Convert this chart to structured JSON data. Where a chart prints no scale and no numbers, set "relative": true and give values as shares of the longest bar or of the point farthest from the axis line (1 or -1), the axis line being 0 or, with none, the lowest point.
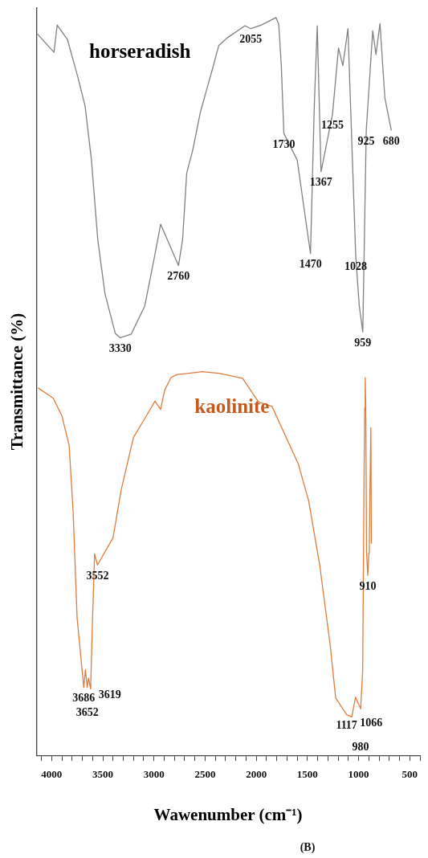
{
  "chart_data": {
    "type": "line",
    "relative": true,
    "xlabel": "Wawenumber (cm⁻¹)",
    "ylabel": "Transmittance (%)",
    "xlim": [
      4150,
      400
    ],
    "xticks": [
      {
        "value": 4100,
        "label": null
      },
      4000,
      {
        "value": 3900,
        "label": null
      },
      {
        "value": 3800,
        "label": null
      },
      {
        "value": 3700,
        "label": null
      },
      {
        "value": 3600,
        "label": null
      },
      3500,
      {
        "value": 3400,
        "label": null
      },
      {
        "value": 3300,
        "label": null
      },
      {
        "value": 3200,
        "label": null
      },
      {
        "value": 3100,
        "label": null
      },
      3000,
      {
        "value": 2900,
        "label": null
      },
      {
        "value": 2800,
        "label": null
      },
      {
        "value": 2700,
        "label": null
      },
      {
        "value": 2600,
        "label": null
      },
      2500,
      {
        "value": 2400,
        "label": null
      },
      {
        "value": 2300,
        "label": null
      },
      {
        "value": 2200,
        "label": null
      },
      {
        "value": 2100,
        "label": null
      },
      2000,
      {
        "value": 1900,
        "label": null
      },
      {
        "value": 1800,
        "label": null
      },
      {
        "value": 1700,
        "label": null
      },
      {
        "value": 1600,
        "label": null
      },
      1500,
      {
        "value": 1400,
        "label": null
      },
      {
        "value": 1300,
        "label": null
      },
      {
        "value": 1200,
        "label": null
      },
      {
        "value": 1100,
        "label": null
      },
      1000,
      {
        "value": 900,
        "label": null
      },
      {
        "value": 800,
        "label": null
      },
      {
        "value": 700,
        "label": null
      },
      {
        "value": 600,
        "label": null
      },
      500,
      {
        "value": 400,
        "label": null
      }
    ],
    "tick_labels": "x",
    "grid": false,
    "legend": false,
    "marker": "none",
    "line_style": "solid",
    "series": [
      {
        "name": "horseradish",
        "color": "#808080",
        "x": [
          4140,
          3977,
          3946,
          3845,
          3743,
          3673,
          3611,
          3549,
          3479,
          3378,
          3330,
          3222,
          3090,
          2989,
          2935,
          2760,
          2720,
          2680,
          2620,
          2546,
          2421,
          2367,
          2289,
          2110,
          2055,
          1950,
          1807,
          1780,
          1755,
          1730,
          1600,
          1470,
          1433,
          1404,
          1367,
          1255,
          1196,
          1154,
          1104,
          1028,
          993,
          959,
          925,
          862,
          830,
          791,
          743,
          680
        ],
        "values": [
          0.978,
          0.953,
          0.99,
          0.97,
          0.919,
          0.88,
          0.807,
          0.699,
          0.626,
          0.572,
          0.566,
          0.571,
          0.609,
          0.68,
          0.72,
          0.664,
          0.699,
          0.789,
          0.821,
          0.872,
          0.934,
          0.962,
          0.972,
          0.989,
          0.985,
          0.99,
          1,
          0.991,
          0.934,
          0.843,
          0.807,
          0.68,
          0.88,
          0.989,
          0.791,
          0.869,
          0.959,
          0.935,
          0.985,
          0.677,
          0.609,
          0.574,
          0.847,
          0.982,
          0.95,
          0.992,
          0.891,
          0.847
        ]
      },
      {
        "name": "kaolinite",
        "color": "#e07b39",
        "x": [
          4132,
          3984,
          3899,
          3829,
          3790,
          3751,
          3686,
          3670,
          3652,
          3640,
          3619,
          3600,
          3580,
          3552,
          3400,
          3320,
          3200,
          3105,
          2990,
          2935,
          2895,
          2834,
          2780,
          2523,
          2367,
          2134,
          1978,
          1846,
          1745,
          1589,
          1488,
          1380,
          1278,
          1224,
          1117,
          1066,
          1030,
          980,
          960,
          950,
          945,
          940,
          935,
          930,
          922,
          910,
          900,
          895,
          890,
          880,
          875
        ],
        "values": [
          0.498,
          0.484,
          0.46,
          0.42,
          0.33,
          0.186,
          0.092,
          0.116,
          0.092,
          0.105,
          0.09,
          0.186,
          0.273,
          0.258,
          0.295,
          0.36,
          0.431,
          0.453,
          0.48,
          0.469,
          0.495,
          0.512,
          0.516,
          0.52,
          0.518,
          0.511,
          0.479,
          0.473,
          0.442,
          0.395,
          0.345,
          0.258,
          0.15,
          0.078,
          0.055,
          0.052,
          0.079,
          0.063,
          0.114,
          0.312,
          0.399,
          0.471,
          0.512,
          0.475,
          0.276,
          0.244,
          0.274,
          0.287,
          0.349,
          0.444,
          0.287
        ]
      }
    ],
    "annotations": [
      {
        "text": "3330",
        "x": 3330,
        "y": 0.566
      },
      {
        "text": "2760",
        "x": 2760,
        "y": 0.664
      },
      {
        "text": "2055",
        "x": 2055,
        "y": 0.985
      },
      {
        "text": "1730",
        "x": 1730,
        "y": 0.843
      },
      {
        "text": "1470",
        "x": 1470,
        "y": 0.68
      },
      {
        "text": "1367",
        "x": 1367,
        "y": 0.791
      },
      {
        "text": "1255",
        "x": 1255,
        "y": 0.869
      },
      {
        "text": "1028",
        "x": 1028,
        "y": 0.677
      },
      {
        "text": "959",
        "x": 959,
        "y": 0.574
      },
      {
        "text": "925",
        "x": 925,
        "y": 0.847
      },
      {
        "text": "680",
        "x": 680,
        "y": 0.847
      },
      {
        "text": "3686",
        "x": 3686,
        "y": 0.092
      },
      {
        "text": "3619",
        "x": 3619,
        "y": 0.09
      },
      {
        "text": "3652",
        "x": 3652,
        "y": 0.092
      },
      {
        "text": "3552",
        "x": 3552,
        "y": 0.258
      },
      {
        "text": "1117",
        "x": 1117,
        "y": 0.055
      },
      {
        "text": "1066",
        "x": 1066,
        "y": 0.052
      },
      {
        "text": "980",
        "x": 980,
        "y": 0.063
      },
      {
        "text": "910",
        "x": 910,
        "y": 0.244
      },
      "(B)"
    ]
  }
}
